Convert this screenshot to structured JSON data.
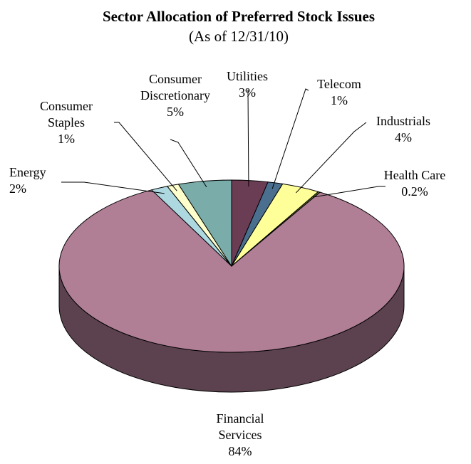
{
  "chart_data": {
    "type": "pie",
    "title": "Sector Allocation of Preferred Stock Issues",
    "subtitle": "(As of 12/31/10)",
    "three_d": true,
    "legend": "none",
    "slices": [
      {
        "label_lines": [
          "Utilities"
        ],
        "value_label": "3%",
        "value": 3.4,
        "color": "#6b3d55"
      },
      {
        "label_lines": [
          "Telecom"
        ],
        "value_label": "1%",
        "value": 1.4,
        "color": "#4a6f8f"
      },
      {
        "label_lines": [
          "Industrials"
        ],
        "value_label": "4%",
        "value": 3.6,
        "color": "#ffff99"
      },
      {
        "label_lines": [
          "Health Care"
        ],
        "value_label": "0.2%",
        "value": 0.2,
        "color": "#606a2f"
      },
      {
        "label_lines": [
          "Financial",
          "Services"
        ],
        "value_label": "84%",
        "value": 84.0,
        "color": "#b07f96"
      },
      {
        "label_lines": [
          "Energy"
        ],
        "value_label": "2%",
        "value": 1.6,
        "color": "#add8e0"
      },
      {
        "label_lines": [
          "Consumer",
          "Staples"
        ],
        "value_label": "1%",
        "value": 1.1,
        "color": "#ffffcc"
      },
      {
        "label_lines": [
          "Consumer",
          "Discretionary"
        ],
        "value_label": "5%",
        "value": 5.0,
        "color": "#7aacaa"
      }
    ]
  }
}
